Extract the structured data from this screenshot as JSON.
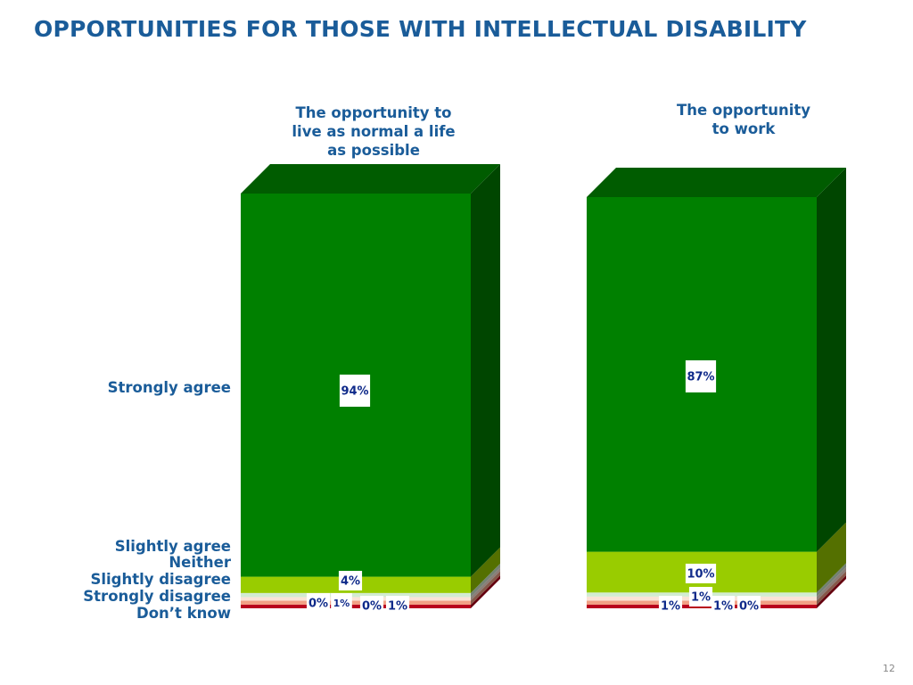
{
  "title": "OPPORTUNITIES FOR THOSE WITH INTELLECTUAL DISABILITY",
  "page_number": "12",
  "chart_data": {
    "type": "bar",
    "stacked": true,
    "style": "3d-stacked-column",
    "categories": [
      "The opportunity to live as normal a life as possible",
      "The opportunity to work"
    ],
    "series": [
      {
        "name": "Don’t know",
        "values": [
          0,
          0
        ],
        "labels": [
          "0%",
          "0%"
        ],
        "color": "#b8001c"
      },
      {
        "name": "Strongly disagree",
        "values": [
          1,
          1
        ],
        "labels": [
          "1%",
          "1%"
        ],
        "color": "#f2a085"
      },
      {
        "name": "Slightly disagree",
        "values": [
          0,
          1
        ],
        "labels": [
          "0%",
          "1%"
        ],
        "color": "#fbe3d6"
      },
      {
        "name": "Neither",
        "values": [
          1,
          1
        ],
        "labels": [
          "1%",
          "1%"
        ],
        "color": "#d2ecd2"
      },
      {
        "name": "Slightly agree",
        "values": [
          4,
          10
        ],
        "labels": [
          "4%",
          "10%"
        ],
        "color": "#99cc00"
      },
      {
        "name": "Strongly agree",
        "values": [
          94,
          87
        ],
        "labels": [
          "94%",
          "87%"
        ],
        "color": "#008000"
      }
    ],
    "ylim": [
      0,
      100
    ],
    "grid": false,
    "legend": "left"
  }
}
